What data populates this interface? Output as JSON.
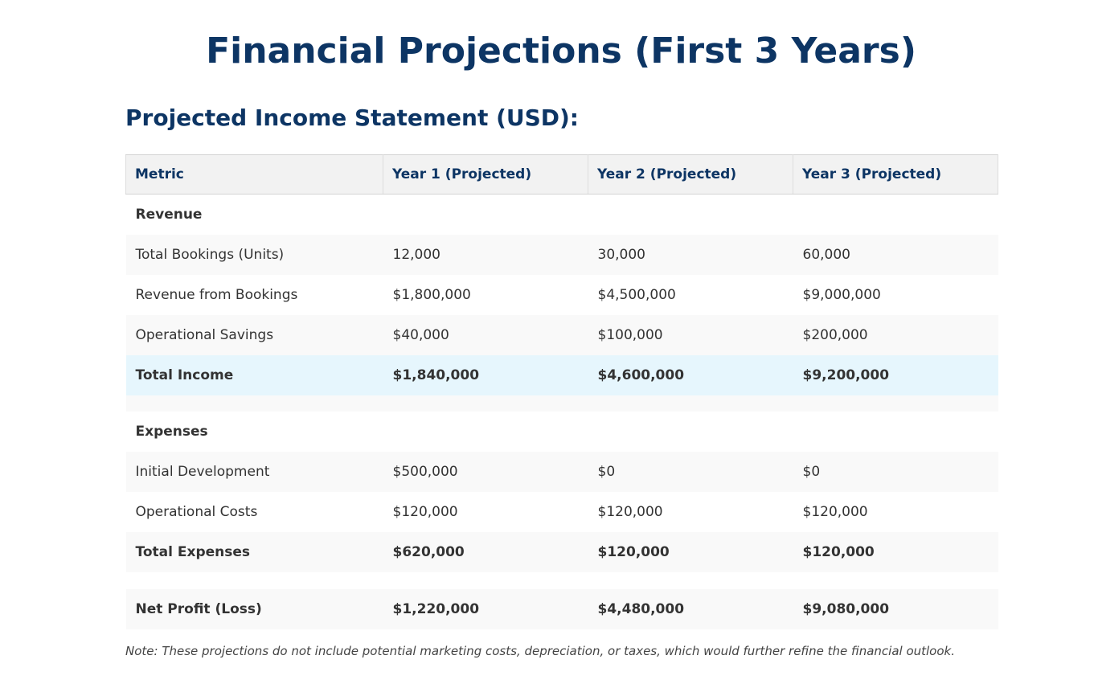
{
  "title": "Financial Projections (First 3 Years)",
  "subtitle": "Projected Income Statement (USD):",
  "table": {
    "headers": [
      "Metric",
      "Year 1 (Projected)",
      "Year 2 (Projected)",
      "Year 3 (Projected)"
    ],
    "revenue_section": "Revenue",
    "revenue_rows": [
      [
        "Total Bookings (Units)",
        "12,000",
        "30,000",
        "60,000"
      ],
      [
        "Revenue from Bookings",
        "$1,800,000",
        "$4,500,000",
        "$9,000,000"
      ],
      [
        "Operational Savings",
        "$40,000",
        "$100,000",
        "$200,000"
      ]
    ],
    "total_income": [
      "Total Income",
      "$1,840,000",
      "$4,600,000",
      "$9,200,000"
    ],
    "expenses_section": "Expenses",
    "expense_rows": [
      [
        "Initial Development",
        "$500,000",
        "$0",
        "$0"
      ],
      [
        "Operational Costs",
        "$120,000",
        "$120,000",
        "$120,000"
      ]
    ],
    "total_expenses": [
      "Total Expenses",
      "$620,000",
      "$120,000",
      "$120,000"
    ],
    "net_profit": [
      "Net Profit (Loss)",
      "$1,220,000",
      "$4,480,000",
      "$9,080,000"
    ]
  },
  "note": "Note: These projections do not include potential marketing costs, depreciation, or taxes, which would further refine the financial outlook."
}
